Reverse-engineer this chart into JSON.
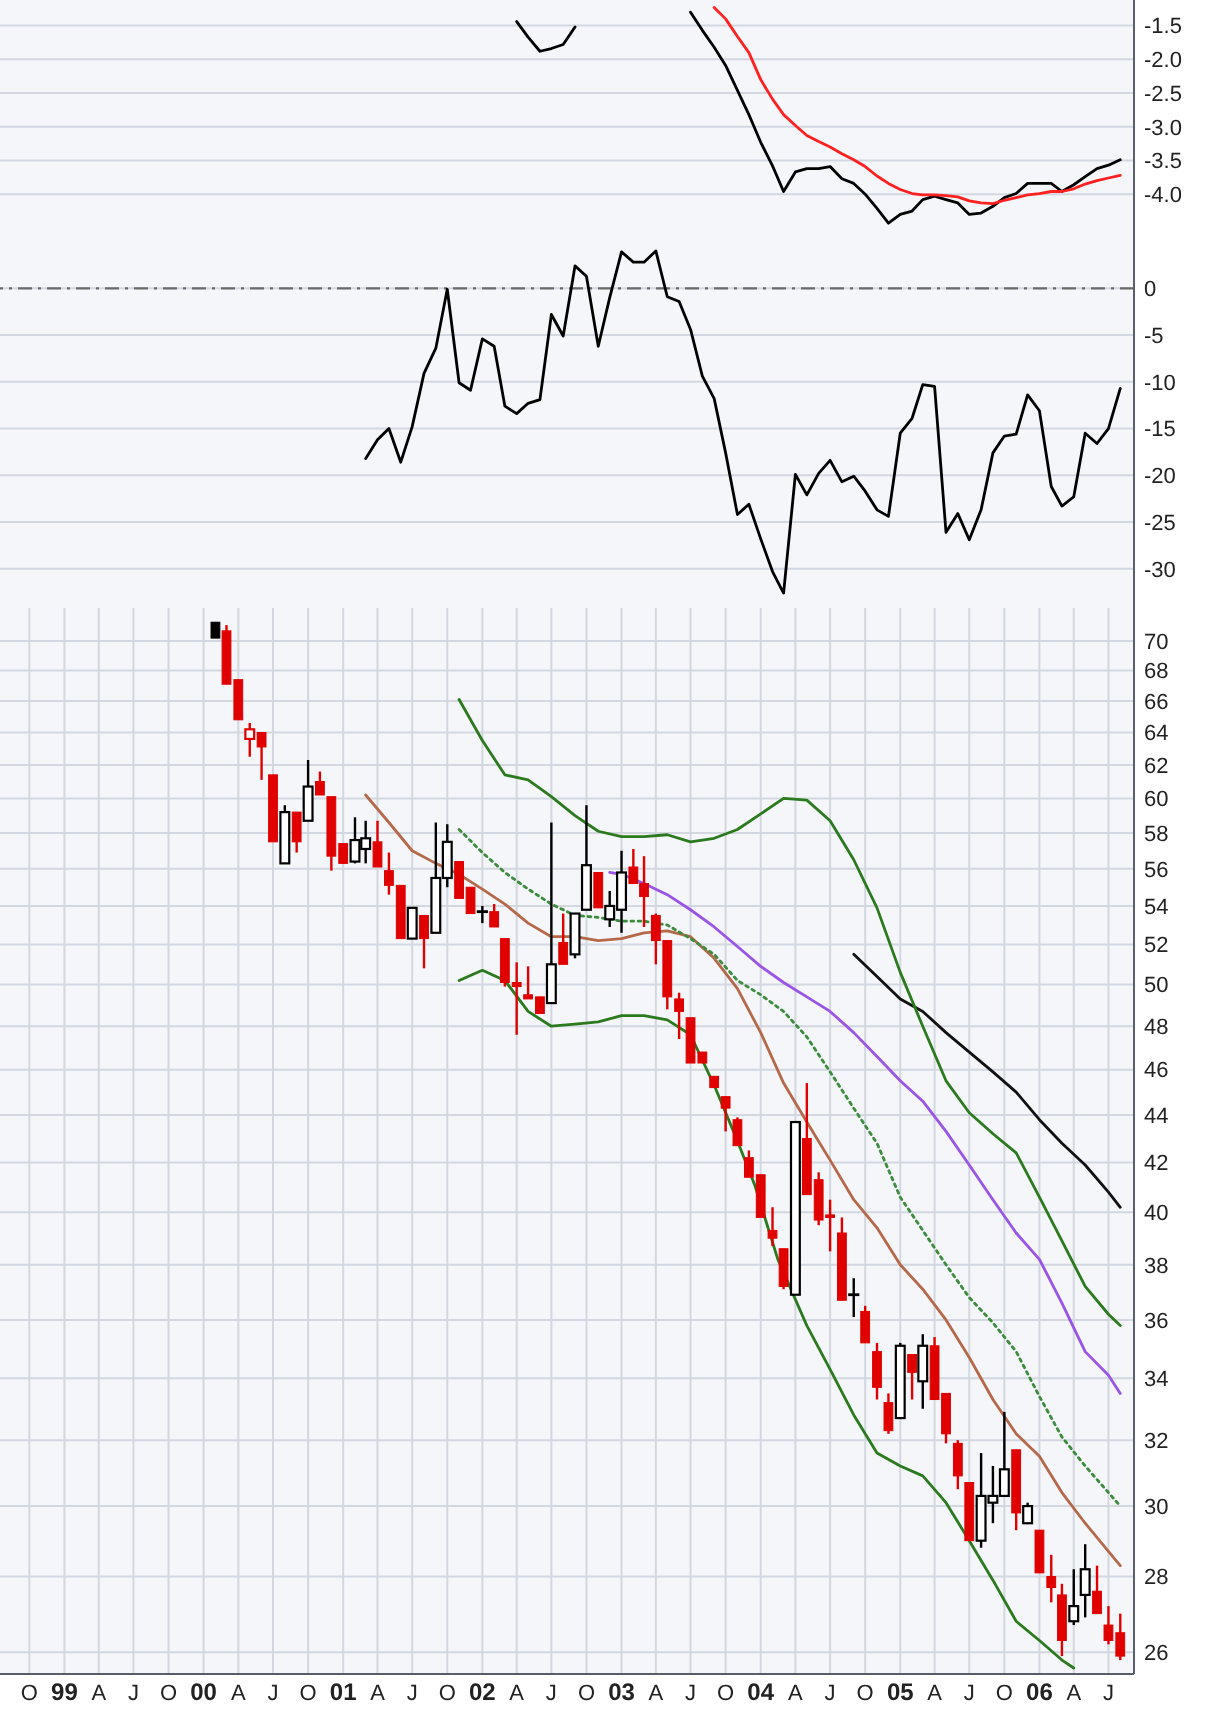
{
  "chart_data": [
    {
      "type": "line",
      "tick_labels": "y",
      "grid": true,
      "xlim": [
        "1998-07-16",
        "2006-09-06"
      ],
      "ylim": [
        -4.62,
        -1.12
      ],
      "xticks": [
        "1998-10",
        "1999-01",
        "1999-04",
        "1999-07",
        "1999-10",
        "2000-01",
        "2000-04",
        "2000-07",
        "2000-10",
        "2001-01",
        "2001-04",
        "2001-07",
        "2001-10",
        "2002-01",
        "2002-04",
        "2002-07",
        "2002-10",
        "2003-01",
        "2003-04",
        "2003-07",
        "2003-10",
        "2004-01",
        "2004-04",
        "2004-07",
        "2004-10",
        "2005-01",
        "2005-04",
        "2005-07",
        "2005-10",
        "2006-01",
        "2006-04",
        "2006-07"
      ],
      "yticks": [
        -1.5,
        {
          "value": -2,
          "label": "-2.0"
        },
        -2.5,
        {
          "value": -3,
          "label": "-3.0"
        },
        -3.5,
        {
          "value": -4,
          "label": "-4.0"
        }
      ],
      "series": [
        {
          "color": "#000000",
          "x": [
            "2002-04",
            "2002-05",
            "2002-06",
            "2002-07",
            "2002-08",
            "2002-09",
            "2002-10",
            "2002-11",
            "2002-12",
            "2003-01",
            "2003-02",
            "2003-03",
            "2003-04",
            "2003-05",
            "2003-06",
            "2003-07",
            "2003-08",
            "2003-09",
            "2003-10",
            "2003-11",
            "2003-12",
            "2004-01",
            "2004-02",
            "2004-03",
            "2004-04",
            "2004-05",
            "2004-06",
            "2004-07",
            "2004-08",
            "2004-09",
            "2004-10",
            "2004-11",
            "2004-12",
            "2005-01",
            "2005-02",
            "2005-03",
            "2005-04",
            "2005-05",
            "2005-06",
            "2005-07",
            "2005-08",
            "2005-09",
            "2005-10",
            "2005-11",
            "2005-12",
            "2006-01",
            "2006-02",
            "2006-03",
            "2006-04",
            "2006-05",
            "2006-06",
            "2006-07",
            "2006-08"
          ],
          "values": [
            -1.44,
            -1.67,
            -1.88,
            -1.84,
            -1.78,
            -1.52,
            null,
            null,
            null,
            null,
            null,
            null,
            null,
            null,
            null,
            -1.3,
            -1.57,
            -1.82,
            -2.09,
            -2.46,
            -2.82,
            -3.23,
            -3.58,
            -3.96,
            -3.67,
            -3.62,
            -3.62,
            -3.59,
            -3.77,
            -3.84,
            -4.0,
            -4.21,
            -4.43,
            -4.3,
            -4.25,
            -4.08,
            -4.03,
            -4.08,
            -4.13,
            -4.3,
            -4.28,
            -4.18,
            -4.05,
            -3.99,
            -3.84,
            -3.84,
            -3.84,
            -3.96,
            -3.86,
            -3.74,
            -3.62,
            -3.57,
            -3.49
          ]
        },
        {
          "color": "#ff2020",
          "x": [
            "2003-09",
            "2003-10",
            "2003-11",
            "2003-12",
            "2004-01",
            "2004-02",
            "2004-03",
            "2004-04",
            "2004-05",
            "2004-06",
            "2004-07",
            "2004-08",
            "2004-09",
            "2004-10",
            "2004-11",
            "2004-12",
            "2005-01",
            "2005-02",
            "2005-03",
            "2005-04",
            "2005-05",
            "2005-06",
            "2005-07",
            "2005-08",
            "2005-09",
            "2005-10",
            "2005-11",
            "2005-12",
            "2006-01",
            "2006-02",
            "2006-03",
            "2006-04",
            "2006-05",
            "2006-06",
            "2006-07",
            "2006-08"
          ],
          "values": [
            -1.23,
            -1.4,
            -1.66,
            -1.9,
            -2.3,
            -2.59,
            -2.82,
            -2.98,
            -3.13,
            -3.22,
            -3.3,
            -3.4,
            -3.49,
            -3.59,
            -3.73,
            -3.84,
            -3.93,
            -3.99,
            -4.01,
            -4.01,
            -4.02,
            -4.04,
            -4.1,
            -4.13,
            -4.14,
            -4.09,
            -4.05,
            -4.01,
            -3.99,
            -3.96,
            -3.96,
            -3.92,
            -3.85,
            -3.8,
            -3.76,
            -3.72
          ]
        }
      ]
    },
    {
      "type": "line",
      "tick_labels": "y",
      "grid": true,
      "xlim": [
        "1998-07-16",
        "2006-09-06"
      ],
      "ylim": [
        -34.2,
        5.6
      ],
      "xticks": [
        "1998-10",
        "1999-01",
        "1999-04",
        "1999-07",
        "1999-10",
        "2000-01",
        "2000-04",
        "2000-07",
        "2000-10",
        "2001-01",
        "2001-04",
        "2001-07",
        "2001-10",
        "2002-01",
        "2002-04",
        "2002-07",
        "2002-10",
        "2003-01",
        "2003-04",
        "2003-07",
        "2003-10",
        "2004-01",
        "2004-04",
        "2004-07",
        "2004-10",
        "2005-01",
        "2005-04",
        "2005-07",
        "2005-10",
        "2006-01",
        "2006-04",
        "2006-07"
      ],
      "yticks": [
        0,
        -5,
        -10,
        -15,
        -20,
        -25,
        -30
      ],
      "ref_lines": [
        {
          "axis": "y",
          "value": 0,
          "line_style": "dashed",
          "color": "#6b6b6b"
        }
      ],
      "x": [
        "2001-03",
        "2001-04",
        "2001-05",
        "2001-06",
        "2001-07",
        "2001-08",
        "2001-09",
        "2001-10",
        "2001-11",
        "2001-12",
        "2002-01",
        "2002-02",
        "2002-03",
        "2002-04",
        "2002-05",
        "2002-06",
        "2002-07",
        "2002-08",
        "2002-09",
        "2002-10",
        "2002-11",
        "2002-12",
        "2003-01",
        "2003-02",
        "2003-03",
        "2003-04",
        "2003-05",
        "2003-06",
        "2003-07",
        "2003-08",
        "2003-09",
        "2003-10",
        "2003-11",
        "2003-12",
        "2004-01",
        "2004-02",
        "2004-03",
        "2004-04",
        "2004-05",
        "2004-06",
        "2004-07",
        "2004-08",
        "2004-09",
        "2004-10",
        "2004-11",
        "2004-12",
        "2005-01",
        "2005-02",
        "2005-03",
        "2005-04",
        "2005-05",
        "2005-06",
        "2005-07",
        "2005-08",
        "2005-09",
        "2005-10",
        "2005-11",
        "2005-12",
        "2006-01",
        "2006-02",
        "2006-03",
        "2006-04",
        "2006-05",
        "2006-06",
        "2006-07",
        "2006-08"
      ],
      "series": [
        {
          "color": "#000000",
          "values": [
            -18.2,
            -16.2,
            -15.0,
            -18.6,
            -14.8,
            -9.1,
            -6.4,
            -0.1,
            -10.1,
            -10.9,
            -5.4,
            -6.2,
            -12.6,
            -13.4,
            -12.3,
            -11.9,
            -2.8,
            -5.1,
            2.4,
            1.3,
            -6.2,
            -1.0,
            3.9,
            2.8,
            2.8,
            4.0,
            -0.9,
            -1.4,
            -4.4,
            -9.4,
            -11.8,
            -17.6,
            -24.2,
            -23.1,
            -26.8,
            -30.3,
            -32.6,
            -19.9,
            -22.1,
            -19.8,
            -18.4,
            -20.7,
            -20.1,
            -21.7,
            -23.7,
            -24.4,
            -15.5,
            -13.9,
            -10.3,
            -10.5,
            -26.1,
            -24.1,
            -26.9,
            -23.7,
            -17.6,
            -15.8,
            -15.6,
            -11.4,
            -13.1,
            -21.2,
            -23.3,
            -22.3,
            -15.5,
            -16.6,
            -15.0,
            -10.7
          ]
        }
      ]
    },
    {
      "type": "candlestick",
      "log": true,
      "grid": true,
      "xlim": [
        "1998-07-16",
        "2006-09-06"
      ],
      "ylim": [
        25.45,
        72.3
      ],
      "xticks": [
        {
          "value": "1998-10",
          "label": "O"
        },
        {
          "value": "1999-01",
          "label": "99"
        },
        {
          "value": "1999-04",
          "label": "A"
        },
        {
          "value": "1999-07",
          "label": "J"
        },
        {
          "value": "1999-10",
          "label": "O"
        },
        {
          "value": "2000-01",
          "label": "00"
        },
        {
          "value": "2000-04",
          "label": "A"
        },
        {
          "value": "2000-07",
          "label": "J"
        },
        {
          "value": "2000-10",
          "label": "O"
        },
        {
          "value": "2001-01",
          "label": "01"
        },
        {
          "value": "2001-04",
          "label": "A"
        },
        {
          "value": "2001-07",
          "label": "J"
        },
        {
          "value": "2001-10",
          "label": "O"
        },
        {
          "value": "2002-01",
          "label": "02"
        },
        {
          "value": "2002-04",
          "label": "A"
        },
        {
          "value": "2002-07",
          "label": "J"
        },
        {
          "value": "2002-10",
          "label": "O"
        },
        {
          "value": "2003-01",
          "label": "03"
        },
        {
          "value": "2003-04",
          "label": "A"
        },
        {
          "value": "2003-07",
          "label": "J"
        },
        {
          "value": "2003-10",
          "label": "O"
        },
        {
          "value": "2004-01",
          "label": "04"
        },
        {
          "value": "2004-04",
          "label": "A"
        },
        {
          "value": "2004-07",
          "label": "J"
        },
        {
          "value": "2004-10",
          "label": "O"
        },
        {
          "value": "2005-01",
          "label": "05"
        },
        {
          "value": "2005-04",
          "label": "A"
        },
        {
          "value": "2005-07",
          "label": "J"
        },
        {
          "value": "2005-10",
          "label": "O"
        },
        {
          "value": "2006-01",
          "label": "06"
        },
        {
          "value": "2006-04",
          "label": "A"
        },
        {
          "value": "2006-07",
          "label": "J"
        }
      ],
      "yticks": [
        26,
        28,
        30,
        32,
        34,
        36,
        38,
        40,
        42,
        44,
        46,
        48,
        50,
        52,
        54,
        56,
        58,
        60,
        62,
        64,
        66,
        68,
        70
      ],
      "x": [
        "2000-02",
        "2000-03",
        "2000-04",
        "2000-05",
        "2000-06",
        "2000-07",
        "2000-08",
        "2000-09",
        "2000-10",
        "2000-11",
        "2000-12",
        "2001-01",
        "2001-02",
        "2001-03",
        "2001-04",
        "2001-05",
        "2001-06",
        "2001-07",
        "2001-08",
        "2001-09",
        "2001-10",
        "2001-11",
        "2001-12",
        "2002-01",
        "2002-02",
        "2002-03",
        "2002-04",
        "2002-05",
        "2002-06",
        "2002-07",
        "2002-08",
        "2002-09",
        "2002-10",
        "2002-11",
        "2002-12",
        "2003-01",
        "2003-02",
        "2003-03",
        "2003-04",
        "2003-05",
        "2003-06",
        "2003-07",
        "2003-08",
        "2003-09",
        "2003-10",
        "2003-11",
        "2003-12",
        "2004-01",
        "2004-02",
        "2004-03",
        "2004-04",
        "2004-05",
        "2004-06",
        "2004-07",
        "2004-08",
        "2004-09",
        "2004-10",
        "2004-11",
        "2004-12",
        "2005-01",
        "2005-02",
        "2005-03",
        "2005-04",
        "2005-05",
        "2005-06",
        "2005-07",
        "2005-08",
        "2005-09",
        "2005-10",
        "2005-11",
        "2005-12",
        "2006-01",
        "2006-02",
        "2006-03",
        "2006-04",
        "2006-05",
        "2006-06",
        "2006-07",
        "2006-08"
      ],
      "ohlc": [
        [
          71.3,
          71.3,
          70.2,
          70.2
        ],
        [
          70.7,
          71.1,
          67.1,
          67.1
        ],
        [
          67.4,
          67.4,
          64.8,
          64.8
        ],
        [
          63.6,
          64.6,
          62.5,
          64.2
        ],
        [
          64.0,
          64.0,
          61.1,
          63.1
        ],
        [
          61.4,
          61.4,
          57.5,
          57.5
        ],
        [
          56.3,
          59.6,
          56.3,
          59.2
        ],
        [
          59.2,
          59.2,
          56.9,
          57.5
        ],
        [
          58.7,
          62.3,
          58.7,
          60.7
        ],
        [
          61.0,
          61.6,
          60.2,
          60.2
        ],
        [
          60.1,
          60.1,
          55.9,
          56.7
        ],
        [
          57.4,
          57.4,
          56.3,
          56.3
        ],
        [
          56.4,
          58.9,
          56.3,
          57.6
        ],
        [
          57.1,
          58.7,
          56.3,
          57.7
        ],
        [
          57.5,
          58.7,
          56.1,
          56.1
        ],
        [
          55.9,
          56.9,
          54.6,
          55.1
        ],
        [
          55.1,
          55.1,
          52.3,
          52.3
        ],
        [
          52.3,
          53.9,
          52.3,
          53.9
        ],
        [
          53.5,
          53.5,
          50.8,
          52.3
        ],
        [
          52.6,
          58.6,
          52.6,
          55.5
        ],
        [
          55.5,
          58.5,
          55.0,
          57.5
        ],
        [
          56.4,
          56.4,
          54.4,
          54.4
        ],
        [
          55.0,
          55.0,
          53.6,
          53.6
        ],
        [
          53.7,
          54.0,
          53.1,
          53.7
        ],
        [
          53.7,
          54.1,
          52.9,
          52.9
        ],
        [
          52.3,
          52.3,
          49.9,
          50.1
        ],
        [
          50.1,
          51.1,
          47.6,
          49.9
        ],
        [
          49.5,
          50.9,
          49.3,
          49.3
        ],
        [
          49.4,
          49.4,
          48.6,
          48.6
        ],
        [
          49.1,
          58.6,
          49.1,
          51.0
        ],
        [
          52.1,
          53.6,
          51.0,
          51.0
        ],
        [
          51.5,
          53.6,
          51.3,
          53.6
        ],
        [
          53.8,
          59.6,
          53.8,
          56.2
        ],
        [
          55.8,
          55.8,
          53.9,
          53.9
        ],
        [
          53.3,
          54.8,
          52.9,
          54.0
        ],
        [
          53.8,
          57.0,
          52.6,
          55.8
        ],
        [
          56.1,
          57.1,
          55.2,
          55.2
        ],
        [
          55.2,
          56.7,
          52.9,
          54.5
        ],
        [
          53.5,
          53.6,
          51.0,
          52.2
        ],
        [
          52.2,
          52.2,
          48.8,
          49.4
        ],
        [
          49.3,
          49.6,
          47.4,
          48.7
        ],
        [
          48.4,
          48.4,
          46.3,
          46.3
        ],
        [
          46.8,
          46.8,
          46.3,
          46.3
        ],
        [
          45.7,
          45.7,
          45.2,
          45.2
        ],
        [
          44.8,
          44.8,
          43.3,
          44.3
        ],
        [
          43.8,
          43.9,
          42.7,
          42.7
        ],
        [
          42.2,
          42.5,
          41.4,
          41.4
        ],
        [
          41.5,
          41.5,
          39.8,
          39.8
        ],
        [
          39.3,
          40.2,
          38.7,
          39.0
        ],
        [
          38.6,
          38.6,
          37.1,
          37.2
        ],
        [
          36.9,
          43.7,
          36.9,
          43.7
        ],
        [
          43.0,
          45.4,
          40.7,
          40.7
        ],
        [
          41.3,
          41.6,
          39.5,
          39.7
        ],
        [
          39.9,
          40.5,
          38.5,
          39.8
        ],
        [
          39.2,
          39.8,
          36.7,
          36.7
        ],
        [
          36.9,
          37.5,
          36.1,
          36.9
        ],
        [
          36.3,
          36.5,
          35.2,
          35.2
        ],
        [
          34.9,
          35.2,
          33.3,
          33.7
        ],
        [
          33.2,
          33.5,
          32.2,
          32.3
        ],
        [
          32.7,
          35.2,
          32.7,
          35.1
        ],
        [
          34.8,
          34.8,
          33.3,
          34.2
        ],
        [
          33.9,
          35.5,
          33.0,
          35.1
        ],
        [
          35.1,
          35.4,
          33.3,
          33.3
        ],
        [
          33.5,
          33.5,
          31.9,
          32.2
        ],
        [
          31.9,
          32.0,
          30.5,
          30.9
        ],
        [
          30.7,
          30.7,
          29.0,
          29.0
        ],
        [
          29.0,
          31.6,
          28.8,
          30.3
        ],
        [
          30.1,
          31.2,
          29.5,
          30.3
        ],
        [
          30.3,
          32.9,
          30.3,
          31.1
        ],
        [
          31.7,
          31.7,
          29.3,
          29.8
        ],
        [
          29.5,
          30.1,
          29.5,
          30.0
        ],
        [
          29.3,
          29.3,
          28.1,
          28.1
        ],
        [
          28.0,
          28.6,
          27.3,
          27.7
        ],
        [
          27.5,
          27.8,
          25.9,
          26.3
        ],
        [
          26.8,
          28.2,
          26.7,
          27.2
        ],
        [
          27.5,
          28.9,
          26.9,
          28.2
        ],
        [
          27.6,
          28.3,
          27.0,
          27.0
        ],
        [
          26.7,
          27.2,
          26.2,
          26.3
        ],
        [
          26.5,
          27.0,
          25.8,
          25.9
        ]
      ],
      "colors": [
        "#000000",
        "#e00000",
        "#e00000",
        "#e00000",
        "#e00000",
        "#e00000",
        "#000000",
        "#e00000",
        "#000000",
        "#e00000",
        "#e00000",
        "#e00000",
        "#000000",
        "#000000",
        "#e00000",
        "#e00000",
        "#e00000",
        "#000000",
        "#e00000",
        "#000000",
        "#000000",
        "#e00000",
        "#e00000",
        "#000000",
        "#e00000",
        "#e00000",
        "#e00000",
        "#e00000",
        "#e00000",
        "#000000",
        "#e00000",
        "#000000",
        "#000000",
        "#e00000",
        "#000000",
        "#000000",
        "#e00000",
        "#e00000",
        "#e00000",
        "#e00000",
        "#e00000",
        "#e00000",
        "#e00000",
        "#e00000",
        "#e00000",
        "#e00000",
        "#e00000",
        "#e00000",
        "#e00000",
        "#e00000",
        "#000000",
        "#e00000",
        "#e00000",
        "#e00000",
        "#e00000",
        "#000000",
        "#e00000",
        "#e00000",
        "#e00000",
        "#000000",
        "#e00000",
        "#000000",
        "#e00000",
        "#e00000",
        "#e00000",
        "#e00000",
        "#000000",
        "#000000",
        "#000000",
        "#e00000",
        "#000000",
        "#e00000",
        "#e00000",
        "#e00000",
        "#000000",
        "#000000",
        "#e00000",
        "#e00000",
        "#e00000"
      ],
      "series": [
        {
          "type": "line",
          "color": "#b5694a",
          "x": [
            "2001-03",
            "2001-05",
            "2001-07",
            "2001-09",
            "2001-11",
            "2002-01",
            "2002-03",
            "2002-05",
            "2002-07",
            "2002-09",
            "2002-11",
            "2003-01",
            "2003-03",
            "2003-05",
            "2003-07",
            "2003-09",
            "2003-11",
            "2004-01",
            "2004-03",
            "2004-05",
            "2004-07",
            "2004-09",
            "2004-11",
            "2005-01",
            "2005-03",
            "2005-05",
            "2005-07",
            "2005-09",
            "2005-11",
            "2006-01",
            "2006-03",
            "2006-05",
            "2006-07",
            "2006-08"
          ],
          "values": [
            60.2,
            58.6,
            57.0,
            56.3,
            55.7,
            54.9,
            54.1,
            53.1,
            52.4,
            52.4,
            52.2,
            52.3,
            52.6,
            52.7,
            52.4,
            51.3,
            49.8,
            47.7,
            45.4,
            43.7,
            42.1,
            40.5,
            39.4,
            38.0,
            37.1,
            36.0,
            34.7,
            33.3,
            32.2,
            31.5,
            30.4,
            29.5,
            28.7,
            28.3
          ]
        },
        {
          "type": "line",
          "color": "#3d8b3d",
          "line_style": "dotted",
          "x": [
            "2001-11",
            "2002-01",
            "2002-03",
            "2002-05",
            "2002-07",
            "2002-09",
            "2002-11",
            "2003-01",
            "2003-03",
            "2003-05",
            "2003-07",
            "2003-09",
            "2003-11",
            "2004-01",
            "2004-03",
            "2004-05",
            "2004-07",
            "2004-09",
            "2004-11",
            "2005-01",
            "2005-03",
            "2005-05",
            "2005-07",
            "2005-09",
            "2005-11",
            "2006-01",
            "2006-03",
            "2006-05",
            "2006-07",
            "2006-08"
          ],
          "values": [
            58.2,
            56.9,
            55.8,
            54.9,
            54.1,
            53.5,
            53.4,
            53.2,
            53.2,
            53.0,
            52.3,
            51.5,
            50.2,
            49.5,
            48.7,
            47.5,
            45.9,
            44.3,
            42.8,
            40.6,
            39.3,
            38.0,
            36.8,
            35.9,
            34.9,
            33.4,
            32.1,
            31.2,
            30.4,
            30.0
          ]
        },
        {
          "type": "line",
          "color": "#9a55e6",
          "x": [
            "2002-12",
            "2003-01",
            "2003-03",
            "2003-05",
            "2003-07",
            "2003-09",
            "2003-11",
            "2004-01",
            "2004-03",
            "2004-05",
            "2004-07",
            "2004-09",
            "2004-11",
            "2005-01",
            "2005-03",
            "2005-05",
            "2005-07",
            "2005-09",
            "2005-11",
            "2006-01",
            "2006-03",
            "2006-05",
            "2006-07",
            "2006-08"
          ],
          "values": [
            55.8,
            55.7,
            55.2,
            54.6,
            53.8,
            52.9,
            51.9,
            50.9,
            50.1,
            49.4,
            48.7,
            47.7,
            46.6,
            45.5,
            44.6,
            43.3,
            41.9,
            40.5,
            39.2,
            38.2,
            36.6,
            34.9,
            34.1,
            33.5
          ]
        },
        {
          "type": "line",
          "color": "#111111",
          "x": [
            "2004-09",
            "2004-11",
            "2005-01",
            "2005-03",
            "2005-05",
            "2005-07",
            "2005-09",
            "2005-11",
            "2006-01",
            "2006-03",
            "2006-05",
            "2006-07",
            "2006-08"
          ],
          "values": [
            51.5,
            50.4,
            49.3,
            48.7,
            47.7,
            46.8,
            45.9,
            45.0,
            43.8,
            42.8,
            41.9,
            40.8,
            40.2
          ]
        },
        {
          "type": "line",
          "color": "#2b7a1e",
          "x": [
            "2001-11",
            "2002-01",
            "2002-03",
            "2002-05",
            "2002-07",
            "2002-09",
            "2002-11",
            "2003-01",
            "2003-03",
            "2003-05",
            "2003-07",
            "2003-09",
            "2003-11",
            "2004-01",
            "2004-03",
            "2004-05",
            "2004-07",
            "2004-09",
            "2004-11",
            "2005-01",
            "2005-03",
            "2005-05",
            "2005-07",
            "2005-09",
            "2005-11",
            "2006-01",
            "2006-03",
            "2006-05",
            "2006-07",
            "2006-08"
          ],
          "values": [
            66.1,
            63.5,
            61.4,
            61.1,
            60.1,
            59.0,
            58.1,
            57.8,
            57.8,
            57.9,
            57.5,
            57.7,
            58.2,
            59.1,
            60.0,
            59.9,
            58.7,
            56.5,
            53.9,
            50.6,
            48.0,
            45.5,
            44.1,
            43.2,
            42.4,
            40.6,
            38.9,
            37.2,
            36.2,
            35.8
          ]
        },
        {
          "type": "line",
          "color": "#2b7a1e",
          "x": [
            "2001-11",
            "2002-01",
            "2002-03",
            "2002-05",
            "2002-07",
            "2002-09",
            "2002-11",
            "2003-01",
            "2003-03",
            "2003-05",
            "2003-07",
            "2003-09",
            "2003-11",
            "2003-12-16",
            "2004-02-15",
            "2004-05",
            "2004-07",
            "2004-09",
            "2004-11",
            "2005-01",
            "2005-03",
            "2005-05",
            "2005-07",
            "2005-09",
            "2005-11",
            "2006-01",
            "2006-03",
            "2006-04"
          ],
          "values": [
            50.2,
            50.7,
            50.2,
            48.7,
            48.0,
            48.1,
            48.2,
            48.5,
            48.5,
            48.3,
            47.6,
            45.3,
            42.9,
            41.1,
            38.2,
            35.8,
            34.3,
            32.8,
            31.6,
            31.2,
            30.9,
            30.1,
            29.0,
            27.9,
            26.8,
            26.3,
            25.8,
            25.6
          ]
        }
      ]
    }
  ]
}
